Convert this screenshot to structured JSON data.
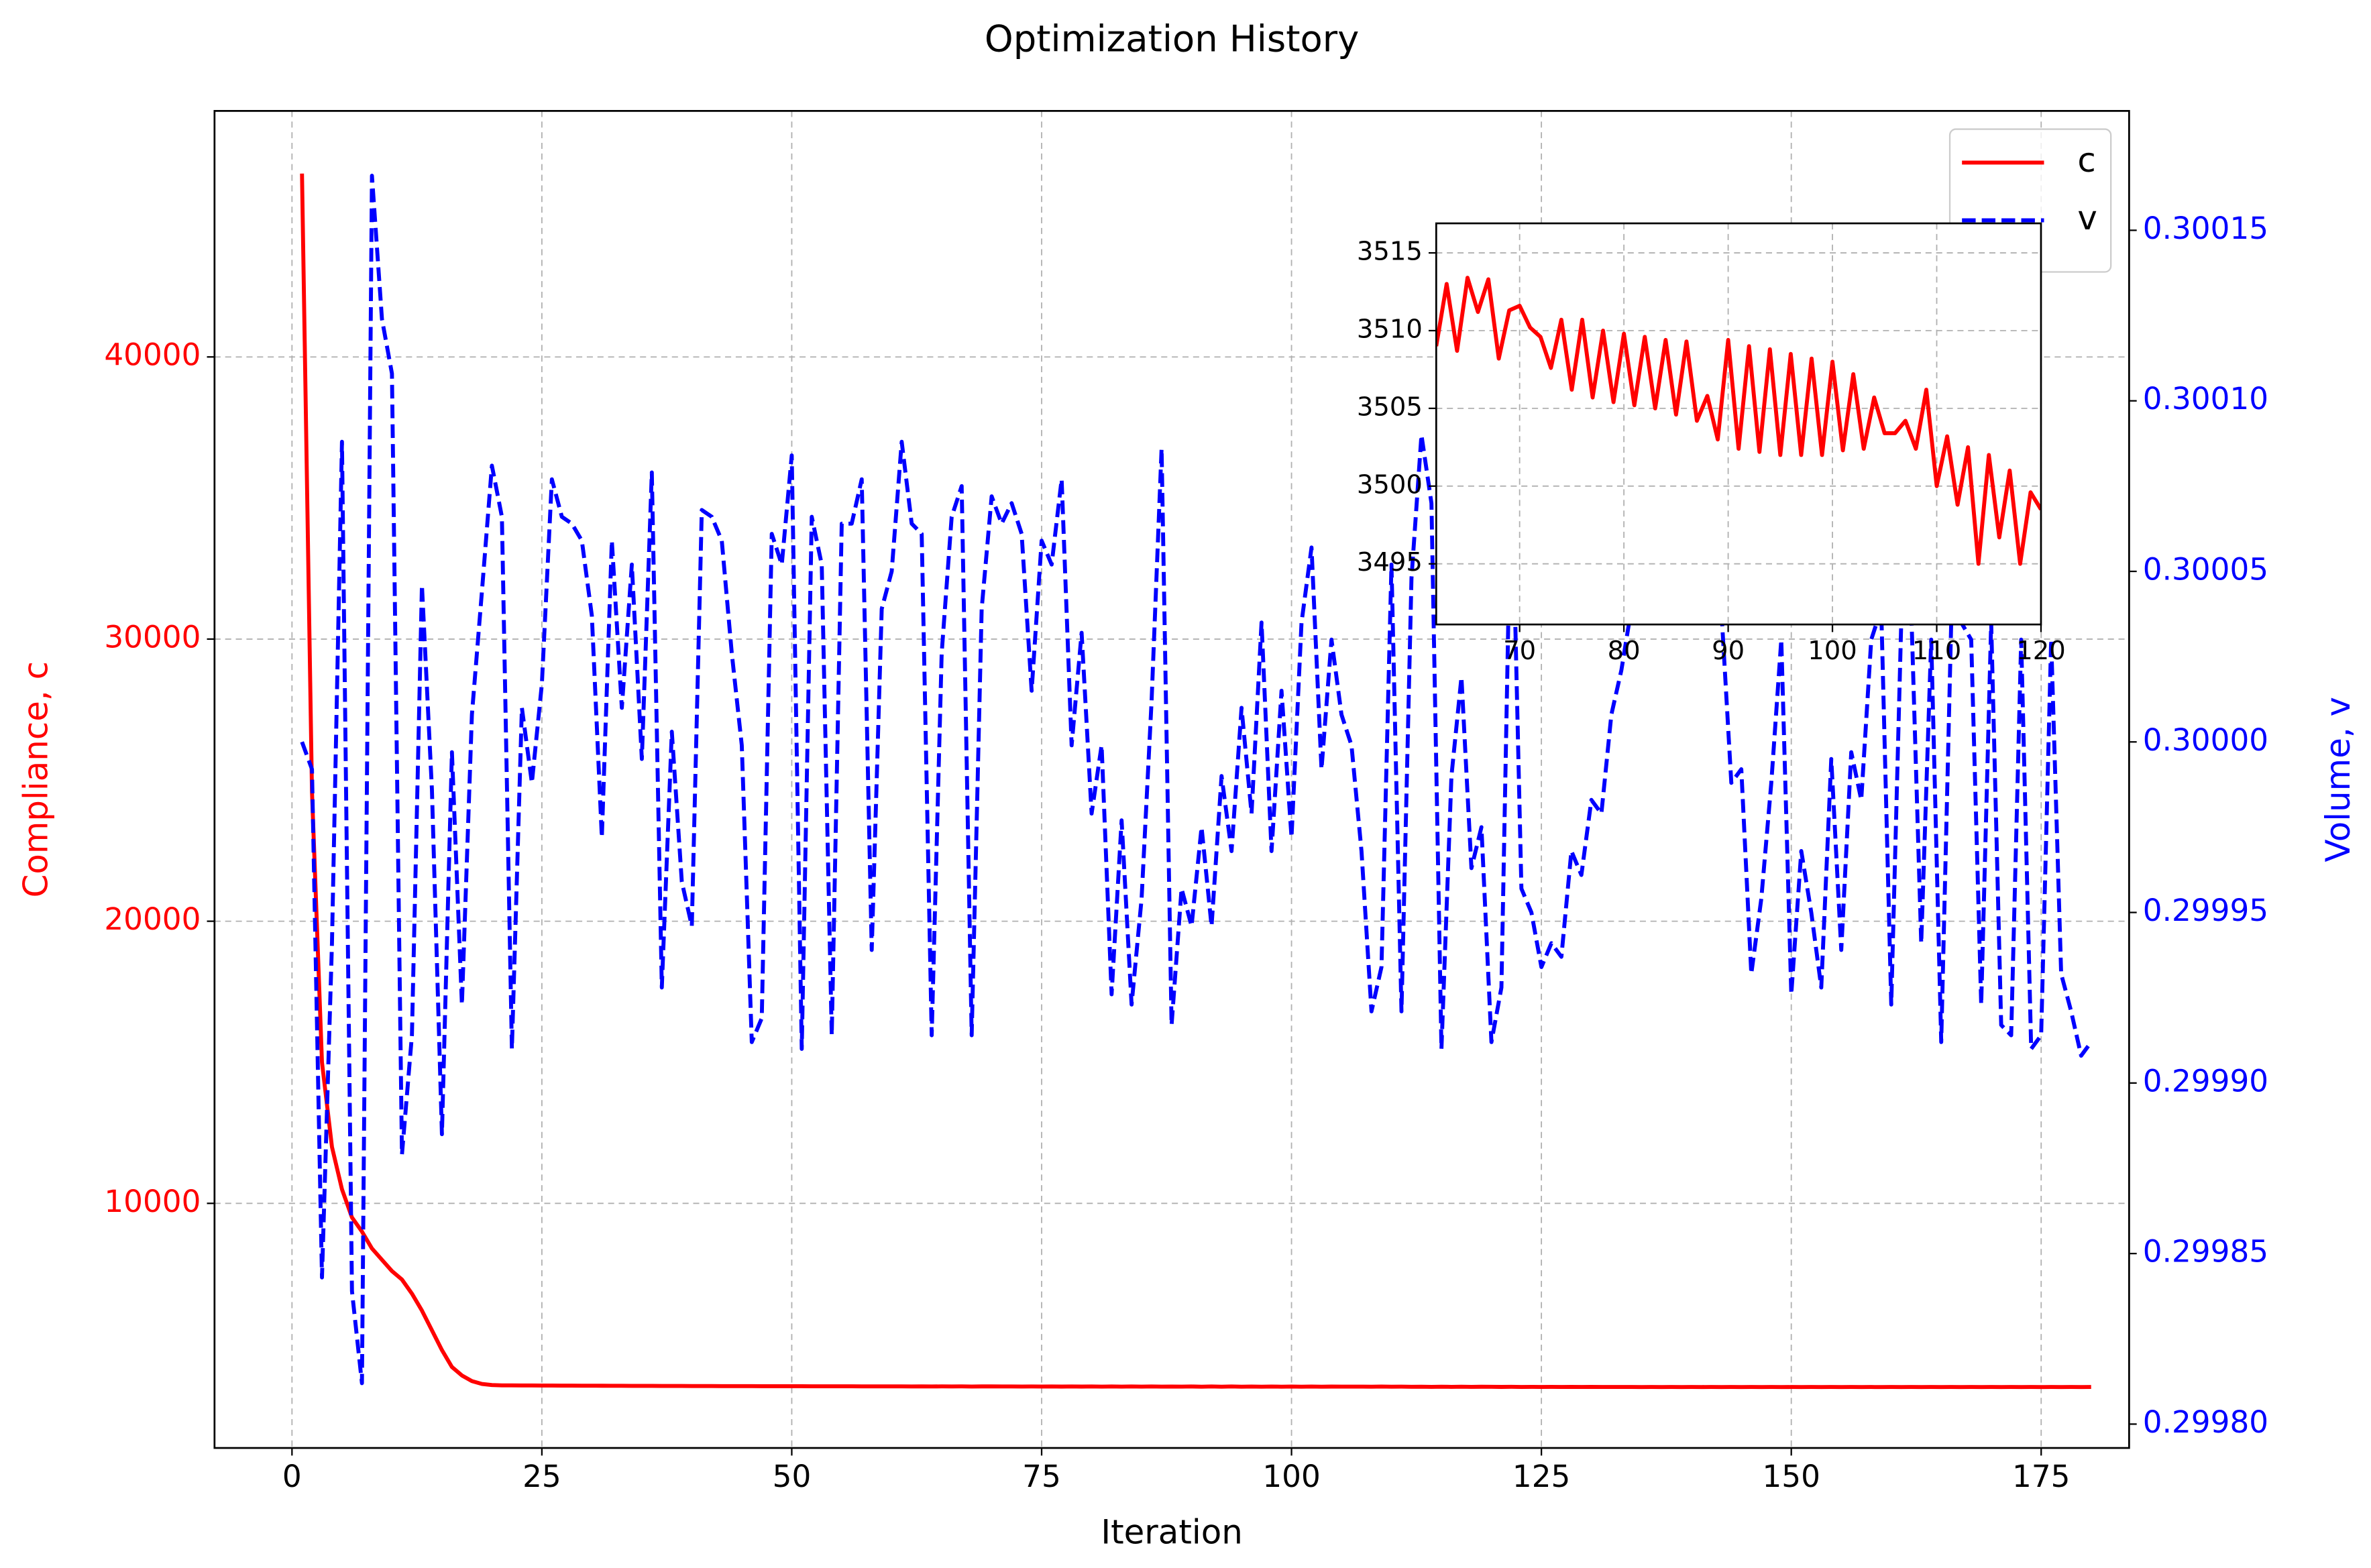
{
  "chart_data": [
    {
      "type": "line",
      "title": "Optimization History",
      "xlabel": "Iteration",
      "ylabel": "Compliance, c",
      "y2label": "Volume, v",
      "x": [
        1,
        2,
        3,
        4,
        5,
        6,
        7,
        8,
        9,
        10,
        11,
        12,
        13,
        14,
        15,
        16,
        17,
        18,
        19,
        20,
        21,
        22,
        23,
        24,
        25,
        26,
        27,
        28,
        29,
        30,
        31,
        32,
        33,
        34,
        35,
        36,
        37,
        38,
        39,
        40,
        41,
        42,
        43,
        44,
        45,
        46,
        47,
        48,
        49,
        50,
        51,
        52,
        53,
        54,
        55,
        56,
        57,
        58,
        59,
        60,
        61,
        62,
        63,
        64,
        65,
        66,
        67,
        68,
        69,
        70,
        71,
        72,
        73,
        74,
        75,
        76,
        77,
        78,
        79,
        80,
        81,
        82,
        83,
        84,
        85,
        86,
        87,
        88,
        89,
        90,
        91,
        92,
        93,
        94,
        95,
        96,
        97,
        98,
        99,
        100,
        101,
        102,
        103,
        104,
        105,
        106,
        107,
        108,
        109,
        110,
        111,
        112,
        113,
        114,
        115,
        116,
        117,
        118,
        119,
        120,
        121,
        122,
        123,
        124,
        125,
        126,
        127,
        128,
        129,
        130,
        131,
        132,
        133,
        134,
        135,
        136,
        137,
        138,
        139,
        140,
        141,
        142,
        143,
        144,
        145,
        146,
        147,
        148,
        149,
        150,
        151,
        152,
        153,
        154,
        155,
        156,
        157,
        158,
        159,
        160,
        161,
        162,
        163,
        164,
        165,
        166,
        167,
        168,
        169,
        170,
        171,
        172,
        173,
        174,
        175,
        176,
        177,
        178,
        179,
        180
      ],
      "series": [
        {
          "name": "c",
          "color": "#ff0000",
          "linestyle": "solid",
          "values": [
            46500,
            24600,
            15000,
            12000,
            10500,
            9500,
            9000,
            8400,
            8000,
            7600,
            7300,
            6800,
            6200,
            5500,
            4800,
            4200,
            3900,
            3700,
            3600,
            3560,
            3550,
            3548,
            3546,
            3545,
            3543,
            3542,
            3540,
            3539,
            3537,
            3536,
            3535,
            3534,
            3533,
            3532,
            3531,
            3530,
            3529,
            3528,
            3527,
            3526,
            3525,
            3524,
            3523,
            3523,
            3522,
            3521,
            3520,
            3520,
            3519,
            3518,
            3518,
            3517,
            3516,
            3516,
            3515,
            3515,
            3514,
            3514,
            3513,
            3513,
            3512,
            3509,
            3513,
            3508.7,
            3513.4,
            3511.2,
            3513.3,
            3508.2,
            3511.3,
            3511.6,
            3510.2,
            3509.6,
            3507.6,
            3510.7,
            3506.2,
            3510.7,
            3505.7,
            3510,
            3505.4,
            3509.8,
            3505.2,
            3509.6,
            3505,
            3509.4,
            3504.6,
            3509.3,
            3504.2,
            3505.8,
            3503,
            3509.4,
            3502.4,
            3509,
            3502.2,
            3508.8,
            3502,
            3508.5,
            3502,
            3508.2,
            3502,
            3508,
            3502.3,
            3507.2,
            3502.4,
            3505.7,
            3503.4,
            3503.4,
            3504.2,
            3502.4,
            3506.2,
            3500,
            3503.2,
            3498.8,
            3502.5,
            3495,
            3502,
            3496.7,
            3501,
            3495,
            3499.6,
            3498.5,
            3494,
            3497,
            3493,
            3496,
            3492,
            3495,
            3492,
            3494,
            3491,
            3494,
            3491,
            3493,
            3491,
            3493,
            3490,
            3493,
            3490,
            3492,
            3490,
            3492,
            3490,
            3492,
            3490,
            3491,
            3490,
            3491,
            3489,
            3491,
            3489,
            3491,
            3490,
            3492,
            3490,
            3491,
            3490,
            3491,
            3489,
            3491,
            3489,
            3491,
            3490,
            3492,
            3490,
            3491,
            3490,
            3491,
            3489,
            3491,
            3489,
            3491,
            3490,
            3492,
            3490,
            3491,
            3490,
            3491,
            3489,
            3491,
            3489,
            3491
          ]
        },
        {
          "name": "v",
          "color": "#0000ff",
          "linestyle": "dashed",
          "axis": "y2",
          "values": [
            0.3,
            0.299992,
            0.299843,
            0.299941,
            0.300088,
            0.299839,
            0.299812,
            0.300166,
            0.300124,
            0.300108,
            0.299879,
            0.299914,
            0.300046,
            0.299986,
            0.299885,
            0.299997,
            0.299923,
            0.300008,
            0.300044,
            0.300081,
            0.300066,
            0.29991,
            0.30001,
            0.299988,
            0.300017,
            0.300077,
            0.300066,
            0.300064,
            0.300059,
            0.300037,
            0.299972,
            0.300059,
            0.30001,
            0.300052,
            0.299995,
            0.300079,
            0.299928,
            0.300003,
            0.299959,
            0.299946,
            0.300068,
            0.300066,
            0.300059,
            0.300026,
            0.299999,
            0.299912,
            0.299919,
            0.300061,
            0.300052,
            0.300084,
            0.29991,
            0.300066,
            0.300052,
            0.299914,
            0.300064,
            0.300064,
            0.300077,
            0.299939,
            0.300039,
            0.30005,
            0.300088,
            0.300064,
            0.300061,
            0.299914,
            0.300026,
            0.300066,
            0.300075,
            0.299914,
            0.300039,
            0.300072,
            0.300064,
            0.30007,
            0.300061,
            0.300015,
            0.300059,
            0.300052,
            0.300077,
            0.299999,
            0.300032,
            0.299979,
            0.299999,
            0.299926,
            0.299977,
            0.299923,
            0.299954,
            0.300012,
            0.300086,
            0.299917,
            0.299957,
            0.299946,
            0.299975,
            0.299946,
            0.29999,
            0.299968,
            0.30001,
            0.299979,
            0.300035,
            0.299968,
            0.300015,
            0.299972,
            0.300035,
            0.300057,
            0.299992,
            0.30003,
            0.300008,
            0.299999,
            0.299968,
            0.299921,
            0.299934,
            0.300052,
            0.299921,
            0.300048,
            0.30009,
            0.30007,
            0.29991,
            0.29999,
            0.300019,
            0.299963,
            0.299975,
            0.299912,
            0.299928,
            0.300084,
            0.299957,
            0.29995,
            0.299934,
            0.299941,
            0.299937,
            0.299968,
            0.299961,
            0.299983,
            0.299979,
            0.300008,
            0.300021,
            0.300039,
            0.300037,
            0.300039,
            0.300039,
            0.300041,
            0.300044,
            0.300041,
            0.300039,
            0.300039,
            0.300039,
            0.299988,
            0.299992,
            0.299932,
            0.299954,
            0.299988,
            0.30003,
            0.299926,
            0.299968,
            0.29995,
            0.299928,
            0.299995,
            0.299939,
            0.299997,
            0.299983,
            0.30003,
            0.300039,
            0.299923,
            0.300035,
            0.300039,
            0.299941,
            0.30003,
            0.299912,
            0.300035,
            0.300035,
            0.30003,
            0.299923,
            0.300035,
            0.299917,
            0.299914,
            0.30003,
            0.29991,
            0.299914,
            0.30003,
            0.299932,
            0.299921,
            0.299908,
            0.299912
          ]
        }
      ],
      "xlim": [
        -7.75,
        183.8
      ],
      "ylim": [
        1330,
        48720
      ],
      "y2lim": [
        0.299793,
        0.300185
      ],
      "xticks": [
        0,
        25,
        50,
        75,
        100,
        125,
        150,
        175
      ],
      "yticks": [
        10000,
        20000,
        30000,
        40000
      ],
      "y2ticks": [
        {
          "value": 0.2998,
          "label": "0.29980"
        },
        0.29985,
        {
          "value": 0.2999,
          "label": "0.29990"
        },
        0.29995,
        {
          "value": 0.3,
          "label": "0.30000"
        },
        0.30005,
        {
          "value": 0.3001,
          "label": "0.30010"
        },
        0.30015
      ],
      "grid": true,
      "legend": "upper right"
    },
    {
      "type": "line",
      "x": [
        62,
        63,
        64,
        65,
        66,
        67,
        68,
        69,
        70,
        71,
        72,
        73,
        74,
        75,
        76,
        77,
        78,
        79,
        80,
        81,
        82,
        83,
        84,
        85,
        86,
        87,
        88,
        89,
        90,
        91,
        92,
        93,
        94,
        95,
        96,
        97,
        98,
        99,
        100,
        101,
        102,
        103,
        104,
        105,
        106,
        107,
        108,
        109,
        110,
        111,
        112,
        113,
        114,
        115,
        116,
        117,
        118,
        119,
        120
      ],
      "series": [
        {
          "color": "#ff0000",
          "linestyle": "solid",
          "values": [
            3509,
            3513,
            3508.7,
            3513.4,
            3511.2,
            3513.3,
            3508.2,
            3511.3,
            3511.6,
            3510.2,
            3509.6,
            3507.6,
            3510.7,
            3506.2,
            3510.7,
            3505.7,
            3510,
            3505.4,
            3509.8,
            3505.2,
            3509.6,
            3505,
            3509.4,
            3504.6,
            3509.3,
            3504.2,
            3505.8,
            3503,
            3509.4,
            3502.4,
            3509,
            3502.2,
            3508.8,
            3502,
            3508.5,
            3502,
            3508.2,
            3502,
            3508,
            3502.3,
            3507.2,
            3502.4,
            3505.7,
            3503.4,
            3503.4,
            3504.2,
            3502.4,
            3506.2,
            3500,
            3503.2,
            3498.8,
            3502.5,
            3495,
            3502,
            3496.7,
            3501,
            3495,
            3499.6,
            3498.5
          ]
        }
      ],
      "xlim": [
        62,
        120
      ],
      "ylim": [
        3491.1,
        3516.9
      ],
      "xticks": [
        70,
        80,
        90,
        100,
        110,
        120
      ],
      "yticks": [
        3495,
        3500,
        3505,
        3510,
        3515
      ],
      "grid": true
    }
  ]
}
